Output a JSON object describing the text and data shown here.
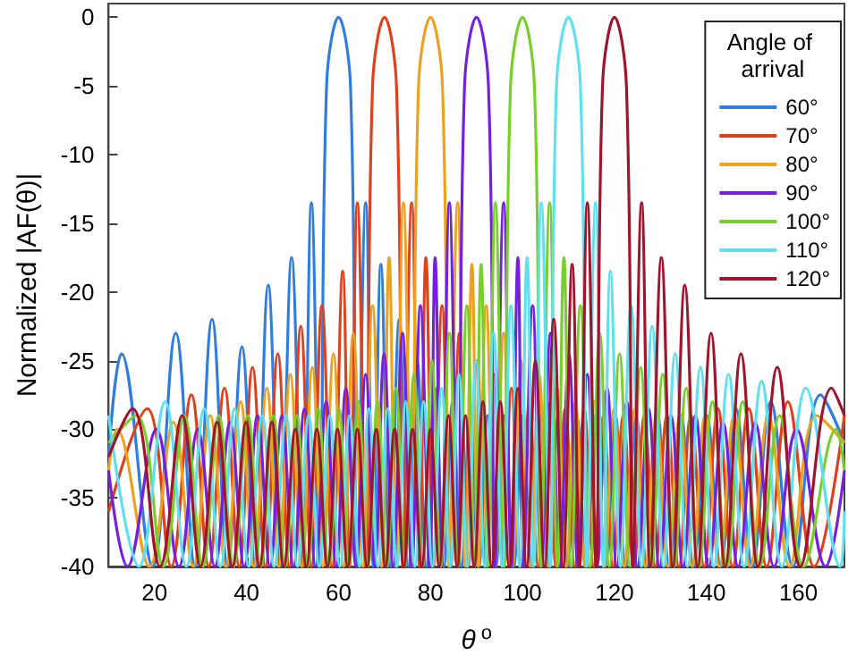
{
  "chart_data": {
    "type": "line",
    "xlabel": "θ$^{o}$",
    "ylabel": "Normalized |AF(θ)|",
    "legend_title": "Angle of arrival",
    "legend": "top right",
    "grid": false,
    "xlim": [
      10,
      170
    ],
    "ylim": [
      -40,
      1
    ],
    "xticks": [
      20,
      40,
      60,
      80,
      100,
      120,
      140,
      160
    ],
    "yticks": [
      -40,
      -35,
      -30,
      -25,
      -20,
      -15,
      -10,
      -5,
      0
    ],
    "series": [
      {
        "name": "60°",
        "color": "#2f7de1",
        "x": [
          10,
          12.8,
          19.6,
          24.6,
          28.8,
          32.5,
          35.9,
          39.0,
          41.9,
          44.7,
          47.3,
          49.8,
          52.2,
          54.1,
          56.0,
          57.4,
          60,
          62.6,
          64.0,
          65.9,
          67.6,
          69.2,
          71.2,
          73.2,
          75.2,
          77.1,
          79.1,
          81.0,
          82.9,
          84.8,
          86.7,
          88.6,
          90.5,
          92.4,
          94.2,
          96.1,
          98.1,
          100.0,
          101.9,
          103.8,
          105.8,
          107.8,
          109.8,
          111.8,
          113.8,
          115.9,
          118.0,
          120.2,
          122.4,
          124.7,
          127.0,
          129.4,
          131.9,
          134.5,
          137.2,
          140.1,
          143.1,
          146.4,
          150.0,
          154.0,
          158.8,
          164.8,
          170
        ],
        "values": [
          -32,
          -24.5,
          -40,
          -23,
          -40,
          -22,
          -40,
          -24,
          -40,
          -19.5,
          -40,
          -17.5,
          -40,
          -13.5,
          -40,
          -5,
          0,
          -5,
          -40,
          -13.5,
          -40,
          -18,
          -40,
          -22,
          -40,
          -25,
          -40,
          -27,
          -40,
          -28,
          -40,
          -29,
          -40,
          -29,
          -40,
          -29,
          -40,
          -29,
          -40,
          -29,
          -40,
          -29,
          -40,
          -29,
          -40,
          -29,
          -40,
          -29,
          -40,
          -29,
          -40,
          -29,
          -40,
          -29,
          -40,
          -29,
          -40,
          -28.5,
          -40,
          -28,
          -40,
          -27.5,
          -31
        ]
      },
      {
        "name": "70°",
        "color": "#e2401c",
        "x": [
          10,
          18.4,
          23.6,
          28.0,
          31.8,
          35.2,
          38.4,
          41.3,
          44.1,
          46.8,
          49.3,
          51.8,
          54.1,
          56.4,
          58.7,
          60.9,
          62.4,
          64.1,
          66.0,
          67.4,
          70,
          72.6,
          74.0,
          75.9,
          77.6,
          79.0,
          80.6,
          82.5,
          84.4,
          86.3,
          88.2,
          90.1,
          92.0,
          93.8,
          95.7,
          97.6,
          99.6,
          101.5,
          103.4,
          105.4,
          107.3,
          109.3,
          111.4,
          113.4,
          115.5,
          117.6,
          119.7,
          121.9,
          124.2,
          126.5,
          128.9,
          131.4,
          134.0,
          136.6,
          139.5,
          142.5,
          145.7,
          149.2,
          153.1,
          157.7,
          163.4,
          170
        ],
        "values": [
          -36,
          -28.5,
          -40,
          -27.5,
          -40,
          -27,
          -40,
          -25.5,
          -40,
          -24.5,
          -40,
          -22.5,
          -40,
          -21,
          -40,
          -18.5,
          -40,
          -13.5,
          -40,
          -5,
          0,
          -5,
          -40,
          -13.5,
          -40,
          -17.5,
          -40,
          -21,
          -40,
          -23,
          -40,
          -25,
          -40,
          -26,
          -40,
          -27,
          -40,
          -28,
          -40,
          -28,
          -40,
          -28.5,
          -40,
          -28.5,
          -40,
          -29,
          -40,
          -29,
          -40,
          -29,
          -40,
          -29,
          -40,
          -29,
          -40,
          -28.5,
          -40,
          -28.5,
          -40,
          -28,
          -40,
          -29
        ]
      },
      {
        "name": "80°",
        "color": "#eda21f",
        "x": [
          10,
          11.8,
          18.9,
          24.1,
          28.4,
          32.1,
          35.5,
          38.7,
          41.6,
          44.4,
          47.0,
          49.5,
          52.0,
          54.3,
          56.6,
          58.9,
          61.1,
          63.2,
          65.3,
          67.4,
          69.4,
          71.0,
          72.4,
          74.1,
          76.0,
          77.4,
          80,
          82.6,
          84.0,
          85.9,
          87.6,
          89.0,
          90.4,
          92.1,
          94.0,
          95.9,
          97.8,
          99.7,
          101.7,
          103.6,
          105.6,
          107.5,
          109.5,
          111.5,
          113.6,
          115.7,
          117.8,
          119.9,
          122.1,
          124.4,
          126.7,
          129.1,
          131.6,
          134.2,
          136.9,
          139.7,
          142.8,
          146.0,
          149.5,
          153.5,
          158.1,
          164.0,
          170
        ],
        "values": [
          -33,
          -30,
          -40,
          -29.5,
          -40,
          -29,
          -40,
          -28,
          -40,
          -27,
          -40,
          -26,
          -40,
          -25.5,
          -40,
          -24.5,
          -40,
          -23,
          -40,
          -21,
          -40,
          -17.5,
          -40,
          -13.5,
          -40,
          -5,
          0,
          -5,
          -40,
          -13.5,
          -40,
          -18,
          -40,
          -21,
          -40,
          -23,
          -40,
          -25,
          -40,
          -26,
          -40,
          -27,
          -40,
          -28,
          -40,
          -28,
          -40,
          -28.5,
          -40,
          -28.5,
          -40,
          -29,
          -40,
          -29,
          -40,
          -29,
          -40,
          -29,
          -40,
          -29,
          -40,
          -29,
          -31
        ]
      },
      {
        "name": "90°",
        "color": "#7420e0",
        "x": [
          10,
          14.1,
          20.4,
          25.3,
          29.4,
          33.1,
          36.4,
          39.5,
          42.4,
          45.1,
          47.7,
          50.2,
          52.6,
          55.0,
          57.3,
          59.5,
          61.6,
          63.8,
          65.9,
          67.9,
          69.9,
          71.9,
          73.9,
          75.9,
          77.8,
          79.8,
          81.0,
          82.4,
          84.1,
          86.0,
          87.4,
          90,
          92.6,
          94.0,
          95.9,
          97.6,
          99.0,
          100.2,
          102.2,
          104.1,
          106.1,
          108.1,
          110.1,
          112.1,
          114.1,
          116.2,
          118.4,
          120.5,
          122.7,
          125.0,
          127.4,
          129.8,
          132.3,
          134.9,
          137.6,
          140.5,
          143.6,
          146.9,
          150.6,
          154.7,
          159.6,
          165.9,
          170
        ],
        "values": [
          -33,
          -40,
          -30,
          -40,
          -30,
          -40,
          -29.5,
          -40,
          -29,
          -40,
          -29,
          -40,
          -28.5,
          -40,
          -28,
          -40,
          -27,
          -40,
          -26,
          -40,
          -24.5,
          -40,
          -23,
          -40,
          -21,
          -40,
          -17.5,
          -40,
          -13.5,
          -40,
          -5,
          0,
          -5,
          -40,
          -13.5,
          -40,
          -17.5,
          -40,
          -21,
          -40,
          -23,
          -40,
          -24.5,
          -40,
          -26,
          -40,
          -27,
          -40,
          -28,
          -40,
          -28.5,
          -40,
          -29,
          -40,
          -29,
          -40,
          -29.5,
          -40,
          -29.5,
          -40,
          -30,
          -40,
          -33
        ]
      },
      {
        "name": "100°",
        "color": "#78cf2a",
        "x": [
          10,
          16.0,
          21.9,
          26.5,
          30.5,
          34.0,
          37.2,
          40.3,
          43.1,
          45.8,
          48.4,
          50.9,
          53.3,
          55.6,
          57.9,
          60.1,
          62.2,
          64.3,
          66.4,
          68.5,
          70.5,
          72.5,
          74.4,
          76.4,
          78.3,
          80.3,
          82.2,
          84.1,
          86.0,
          87.9,
          89.6,
          91.0,
          92.4,
          94.1,
          96.0,
          97.4,
          100,
          102.6,
          104.0,
          105.9,
          107.6,
          109.0,
          110.6,
          112.6,
          114.7,
          116.8,
          118.9,
          121.1,
          123.4,
          125.7,
          128.0,
          130.5,
          133.0,
          135.6,
          138.4,
          141.3,
          144.5,
          147.9,
          151.6,
          155.9,
          161.1,
          168.2,
          170
        ],
        "values": [
          -31,
          -29,
          -40,
          -29,
          -40,
          -29,
          -40,
          -29,
          -40,
          -29,
          -40,
          -29,
          -40,
          -28.5,
          -40,
          -28.5,
          -40,
          -28,
          -40,
          -28,
          -40,
          -27,
          -40,
          -26,
          -40,
          -25,
          -40,
          -23,
          -40,
          -21,
          -40,
          -18,
          -40,
          -13.5,
          -40,
          -5,
          0,
          -5,
          -40,
          -13.5,
          -40,
          -17.5,
          -40,
          -21,
          -40,
          -23,
          -40,
          -24.5,
          -40,
          -25.5,
          -40,
          -26,
          -40,
          -27,
          -40,
          -28,
          -40,
          -28,
          -40,
          -29,
          -40,
          -30,
          -33
        ]
      },
      {
        "name": "110°",
        "color": "#5fe0ee",
        "x": [
          10,
          16.6,
          22.3,
          26.9,
          30.8,
          34.3,
          37.4,
          40.5,
          43.4,
          46.0,
          48.6,
          51.1,
          53.5,
          55.8,
          58.1,
          60.3,
          62.4,
          64.6,
          66.6,
          68.6,
          70.7,
          72.7,
          74.6,
          76.6,
          78.5,
          80.4,
          82.4,
          84.3,
          86.2,
          88.0,
          89.9,
          91.8,
          93.7,
          95.6,
          97.5,
          99.4,
          101.0,
          102.4,
          104.1,
          106.0,
          107.4,
          110,
          112.6,
          114.0,
          115.9,
          117.6,
          119.1,
          121.3,
          123.6,
          125.9,
          128.2,
          130.7,
          133.2,
          135.9,
          138.7,
          141.6,
          144.8,
          148.2,
          152.0,
          156.4,
          161.6,
          169.1,
          170
        ],
        "values": [
          -29,
          -40,
          -28,
          -40,
          -28.5,
          -40,
          -28.5,
          -40,
          -29,
          -40,
          -29,
          -40,
          -29,
          -40,
          -29,
          -40,
          -29,
          -40,
          -28.5,
          -40,
          -28.5,
          -40,
          -28,
          -40,
          -28,
          -40,
          -27,
          -40,
          -26,
          -40,
          -25,
          -40,
          -23,
          -40,
          -21,
          -40,
          -17.5,
          -40,
          -13.5,
          -40,
          -5,
          0,
          -5,
          -40,
          -13.5,
          -40,
          -18.5,
          -40,
          -21,
          -40,
          -22.5,
          -40,
          -24.5,
          -40,
          -25.5,
          -40,
          -26,
          -40,
          -26.5,
          -40,
          -27,
          -40,
          -36
        ]
      },
      {
        "name": "120°",
        "color": "#a0142c",
        "x": [
          10,
          15.2,
          21.2,
          26.0,
          30.0,
          33.6,
          36.9,
          39.9,
          42.8,
          45.5,
          48.1,
          50.6,
          53.0,
          55.3,
          57.6,
          59.8,
          62.0,
          64.1,
          66.2,
          68.2,
          70.2,
          72.2,
          74.2,
          76.1,
          78.1,
          80.0,
          81.9,
          83.9,
          85.8,
          87.6,
          89.5,
          91.4,
          93.3,
          95.2,
          97.1,
          99.0,
          100.9,
          102.8,
          104.8,
          106.8,
          108.8,
          110.8,
          112.4,
          114.1,
          116.0,
          117.4,
          120,
          122.6,
          124.0,
          125.9,
          127.8,
          130.2,
          132.7,
          135.3,
          138.1,
          141.0,
          144.1,
          147.5,
          151.2,
          155.4,
          160.4,
          167.2,
          170
        ],
        "values": [
          -32,
          -28.5,
          -40,
          -29,
          -40,
          -29.5,
          -40,
          -29.5,
          -40,
          -29.5,
          -40,
          -30,
          -40,
          -30,
          -40,
          -30,
          -40,
          -30,
          -40,
          -30,
          -40,
          -30,
          -40,
          -30,
          -40,
          -30,
          -40,
          -29,
          -40,
          -29,
          -40,
          -28,
          -40,
          -28,
          -40,
          -27,
          -40,
          -25,
          -40,
          -22,
          -40,
          -18,
          -40,
          -13.5,
          -40,
          -5,
          0,
          -5,
          -40,
          -13.5,
          -40,
          -17.5,
          -40,
          -19.5,
          -40,
          -23,
          -40,
          -24.5,
          -40,
          -25.5,
          -40,
          -27,
          -29
        ]
      }
    ]
  }
}
